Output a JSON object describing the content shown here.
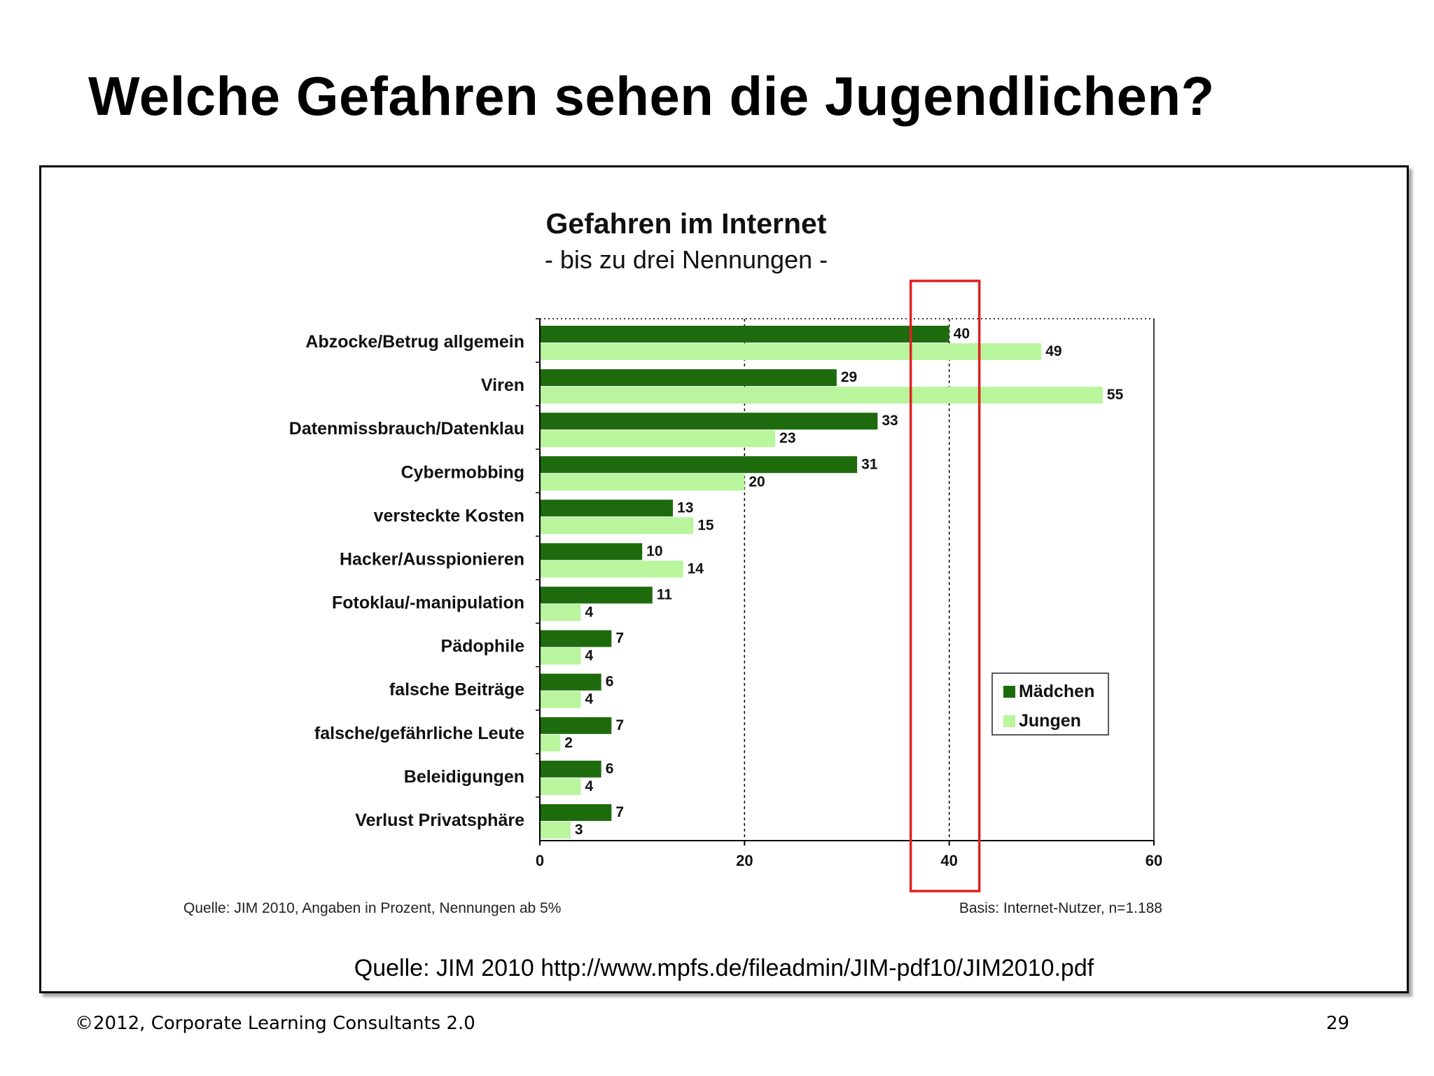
{
  "slide": {
    "title": "Welche Gefahren sehen die Jugendlichen?",
    "caption": "Quelle: JIM 2010 http://www.mpfs.de/fileadmin/JIM-pdf10/JIM2010.pdf",
    "footer_left": "©2012, Corporate Learning Consultants 2.0",
    "footer_right": "29"
  },
  "colors": {
    "maedchen": "#1e6b0e",
    "jungen": "#b8f59c",
    "highlight": "#e02020"
  },
  "chart_data": {
    "type": "bar",
    "orientation": "horizontal",
    "title": "Gefahren im Internet",
    "subtitle": "- bis zu drei Nennungen -",
    "categories": [
      "Abzocke/Betrug allgemein",
      "Viren",
      "Datenmissbrauch/Datenklau",
      "Cybermobbing",
      "versteckte Kosten",
      "Hacker/Ausspionieren",
      "Fotoklau/-manipulation",
      "Pädophile",
      "falsche Beiträge",
      "falsche/gefährliche Leute",
      "Beleidigungen",
      "Verlust Privatsphäre"
    ],
    "series": [
      {
        "name": "Mädchen",
        "values": [
          40,
          29,
          33,
          31,
          13,
          10,
          11,
          7,
          6,
          7,
          6,
          7
        ]
      },
      {
        "name": "Jungen",
        "values": [
          49,
          55,
          23,
          20,
          15,
          14,
          4,
          4,
          4,
          2,
          4,
          3
        ]
      }
    ],
    "xlim": [
      0,
      60
    ],
    "xticks": [
      "0",
      "20",
      "40",
      "60"
    ],
    "gridlines": [
      20,
      40
    ],
    "legend_position": "right",
    "highlight_value": 40,
    "note_left": "Quelle: JIM 2010, Angaben in Prozent, Nennungen ab  5%",
    "note_right": "Basis: Internet-Nutzer, n=1.188"
  }
}
